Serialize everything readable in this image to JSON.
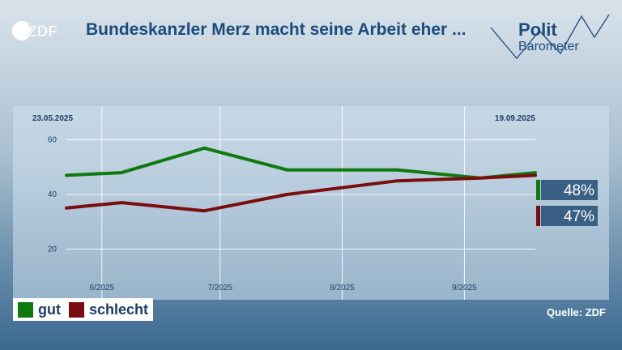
{
  "header": {
    "logo_text": "ZDF",
    "title": "Bundeskanzler Merz macht seine Arbeit eher ...",
    "brand_word_1": "Polit",
    "brand_word_2": "Barometer"
  },
  "colors": {
    "gut": "#0e7a0e",
    "schlecht": "#7a0e0e",
    "label_bg": "#3a5f85"
  },
  "chart_data": {
    "type": "line",
    "date_start": "23.05.2025",
    "date_end": "19.09.2025",
    "ylim": [
      10,
      70
    ],
    "yticks": [
      20,
      40,
      60
    ],
    "xticks": [
      {
        "label": "6/2025",
        "date": "2025-06-01"
      },
      {
        "label": "7/2025",
        "date": "2025-07-01"
      },
      {
        "label": "8/2025",
        "date": "2025-08-01"
      },
      {
        "label": "9/2025",
        "date": "2025-09-01"
      }
    ],
    "xlim": [
      "2025-05-23",
      "2025-09-19"
    ],
    "series": [
      {
        "name": "gut",
        "color": "#0e7a0e",
        "end_label": "48%",
        "points": [
          {
            "x": "2025-05-23",
            "y": 47
          },
          {
            "x": "2025-06-06",
            "y": 48
          },
          {
            "x": "2025-06-27",
            "y": 57
          },
          {
            "x": "2025-07-18",
            "y": 49
          },
          {
            "x": "2025-08-15",
            "y": 49
          },
          {
            "x": "2025-09-05",
            "y": 46
          },
          {
            "x": "2025-09-19",
            "y": 48
          }
        ]
      },
      {
        "name": "schlecht",
        "color": "#7a0e0e",
        "end_label": "47%",
        "points": [
          {
            "x": "2025-05-23",
            "y": 35
          },
          {
            "x": "2025-06-06",
            "y": 37
          },
          {
            "x": "2025-06-27",
            "y": 34
          },
          {
            "x": "2025-07-18",
            "y": 40
          },
          {
            "x": "2025-08-15",
            "y": 45
          },
          {
            "x": "2025-09-05",
            "y": 46
          },
          {
            "x": "2025-09-19",
            "y": 47
          }
        ]
      }
    ],
    "grid": true
  },
  "legend": {
    "items": [
      {
        "label": "gut",
        "color": "#0e7a0e"
      },
      {
        "label": "schlecht",
        "color": "#7a0e0e"
      }
    ]
  },
  "footer": {
    "source": "Quelle: ZDF"
  }
}
